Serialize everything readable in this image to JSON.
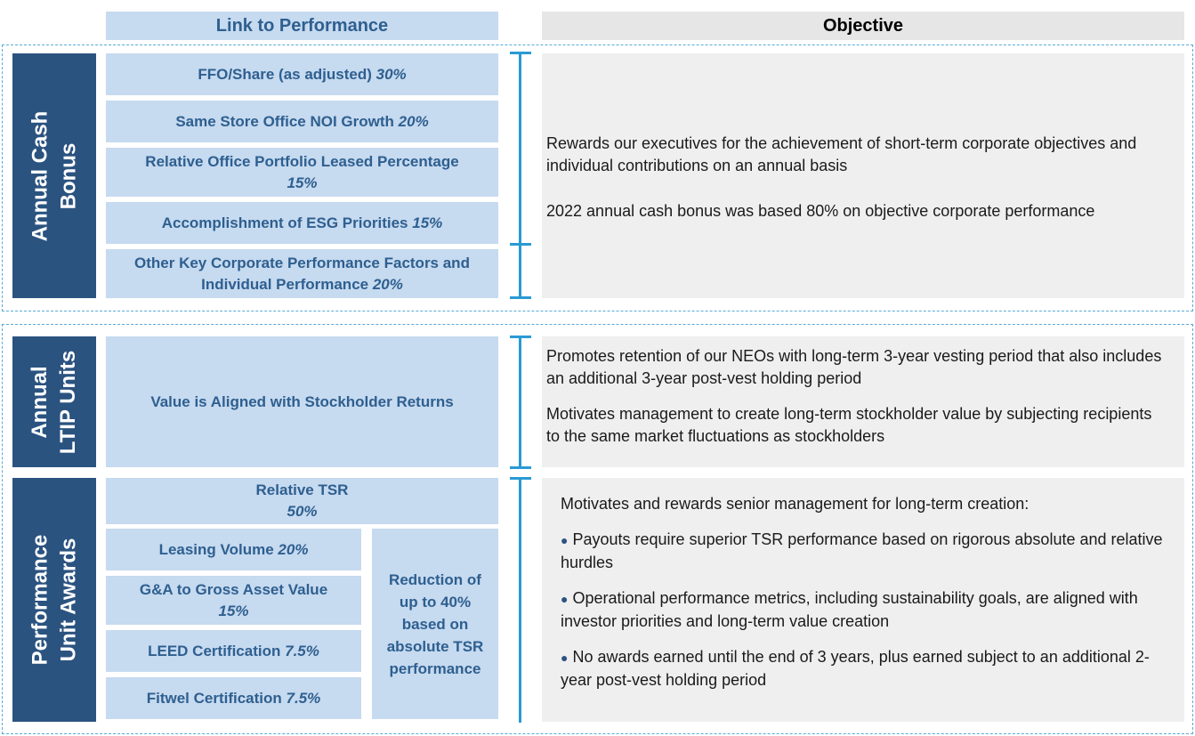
{
  "headers": {
    "link": "Link to Performance",
    "objective": "Objective"
  },
  "annual_cash_bonus": {
    "label_lines": [
      "Annual Cash",
      "Bonus"
    ],
    "metrics": [
      {
        "name": "FFO/Share (as adjusted)",
        "pct": "30%"
      },
      {
        "name": "Same Store Office NOI Growth",
        "pct": "20%"
      },
      {
        "name": "Relative Office Portfolio Leased Percentage",
        "pct": "15%"
      },
      {
        "name": "Accomplishment of ESG Priorities",
        "pct": "15%"
      },
      {
        "name": "Other Key Corporate Performance Factors and Individual Performance",
        "pct": "20%"
      }
    ],
    "objective": [
      "Rewards our executives for the achievement of short-term corporate objectives and individual contributions on an annual basis",
      "2022 annual cash bonus was based 80% on objective corporate performance"
    ]
  },
  "annual_ltip": {
    "label_lines": [
      "Annual",
      "LTIP Units"
    ],
    "metric": "Value is Aligned with Stockholder Returns",
    "objective": [
      "Promotes retention of our NEOs with long-term 3-year vesting period that also includes an additional 3-year post-vest holding period",
      "Motivates management to create long-term stockholder value by subjecting recipients to the same market fluctuations as stockholders"
    ]
  },
  "performance_units": {
    "label_lines": [
      "Performance",
      "Unit Awards"
    ],
    "relative_tsr": {
      "name": "Relative TSR",
      "pct": "50%"
    },
    "metrics": [
      {
        "name": "Leasing Volume",
        "pct": "20%"
      },
      {
        "name": "G&A to Gross Asset Value",
        "pct": "15%"
      },
      {
        "name": "LEED Certification",
        "pct": "7.5%"
      },
      {
        "name": "Fitwel Certification",
        "pct": "7.5%"
      }
    ],
    "reduction": "Reduction of up to 40% based on absolute TSR performance",
    "objective_intro": "Motivates and rewards senior management for long-term creation:",
    "bullets": [
      "Payouts require superior TSR performance based on rigorous absolute and relative hurdles",
      "Operational performance metrics, including sustainability goals, are aligned with investor priorities and long-term value creation",
      "No awards earned until the end of 3 years, plus earned subject to an additional 2-year post-vest holding period"
    ]
  },
  "colors": {
    "dark_blue": "#2b5380",
    "light_blue": "#c6daf0",
    "text_blue": "#2e5f8f",
    "bracket": "#2a9ad4",
    "grey_panel": "#efefef"
  }
}
